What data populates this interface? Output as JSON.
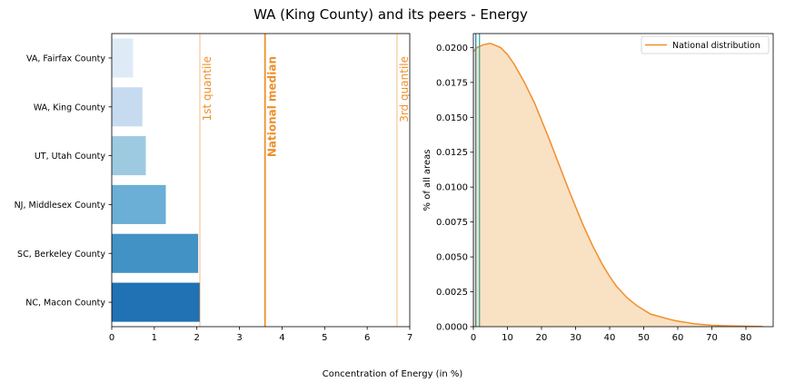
{
  "figure": {
    "title": "WA (King County) and its peers - Energy",
    "xlabel": "Concentration of Energy (in %)"
  },
  "colors": {
    "orange": "#f28e2b",
    "orange_line": "#ef8f2a",
    "fill": "#f9e1c4",
    "bar_blues": [
      "#deebf7",
      "#c6dbef",
      "#9ecae1",
      "#6baed6",
      "#4292c6",
      "#2171b5"
    ],
    "vline_blue": "#1f77b4",
    "vline_teal": "#2ca58d"
  },
  "chart_data": [
    {
      "type": "bar",
      "orientation": "horizontal",
      "categories": [
        "VA, Fairfax County",
        "WA, King County",
        "UT, Utah County",
        "NJ, Middlesex County",
        "SC, Berkeley County",
        "NC, Macon County"
      ],
      "values": [
        0.5,
        0.72,
        0.8,
        1.27,
        2.03,
        2.07
      ],
      "xlim": [
        0,
        7
      ],
      "xticks": [
        0,
        1,
        2,
        3,
        4,
        5,
        6,
        7
      ],
      "reference_lines": [
        {
          "label": "1st quantile",
          "value": 2.07,
          "style": "thin"
        },
        {
          "label": "National median",
          "value": 3.6,
          "style": "bold"
        },
        {
          "label": "3rd quantile",
          "value": 6.7,
          "style": "thin"
        }
      ]
    },
    {
      "type": "area",
      "ylabel": "% of all areas",
      "xlim": [
        0,
        88
      ],
      "ylim": [
        0,
        0.021
      ],
      "xticks": [
        0,
        10,
        20,
        30,
        40,
        50,
        60,
        70,
        80
      ],
      "yticks": [
        "0.0000",
        "0.0025",
        "0.0050",
        "0.0075",
        "0.0100",
        "0.0125",
        "0.0150",
        "0.0175",
        "0.0200"
      ],
      "legend": {
        "label": "National distribution",
        "position": "top-right"
      },
      "series": [
        {
          "name": "National distribution",
          "x": [
            0,
            1,
            2,
            3,
            4,
            5,
            6,
            7,
            8,
            10,
            12,
            15,
            18,
            20,
            22,
            25,
            28,
            30,
            32,
            35,
            38,
            40,
            42,
            45,
            48,
            50,
            52,
            55,
            58,
            60,
            63,
            65,
            68,
            70,
            75,
            80,
            85
          ],
          "y": [
            0.0197,
            0.02,
            0.0201,
            0.0202,
            0.02025,
            0.0203,
            0.0202,
            0.0201,
            0.02,
            0.0195,
            0.0188,
            0.0175,
            0.016,
            0.0148,
            0.0136,
            0.0117,
            0.0098,
            0.0086,
            0.0074,
            0.0058,
            0.0044,
            0.0036,
            0.0029,
            0.0021,
            0.0015,
            0.0012,
            0.0009,
            0.0007,
            0.0005,
            0.0004,
            0.00028,
            0.0002,
            0.00014,
            0.0001,
            6e-05,
            3e-05,
            1e-05
          ]
        }
      ],
      "reference_lines": [
        {
          "value": 0.72,
          "color": "vline_blue"
        },
        {
          "value": 1.8,
          "color": "vline_teal"
        }
      ]
    }
  ]
}
